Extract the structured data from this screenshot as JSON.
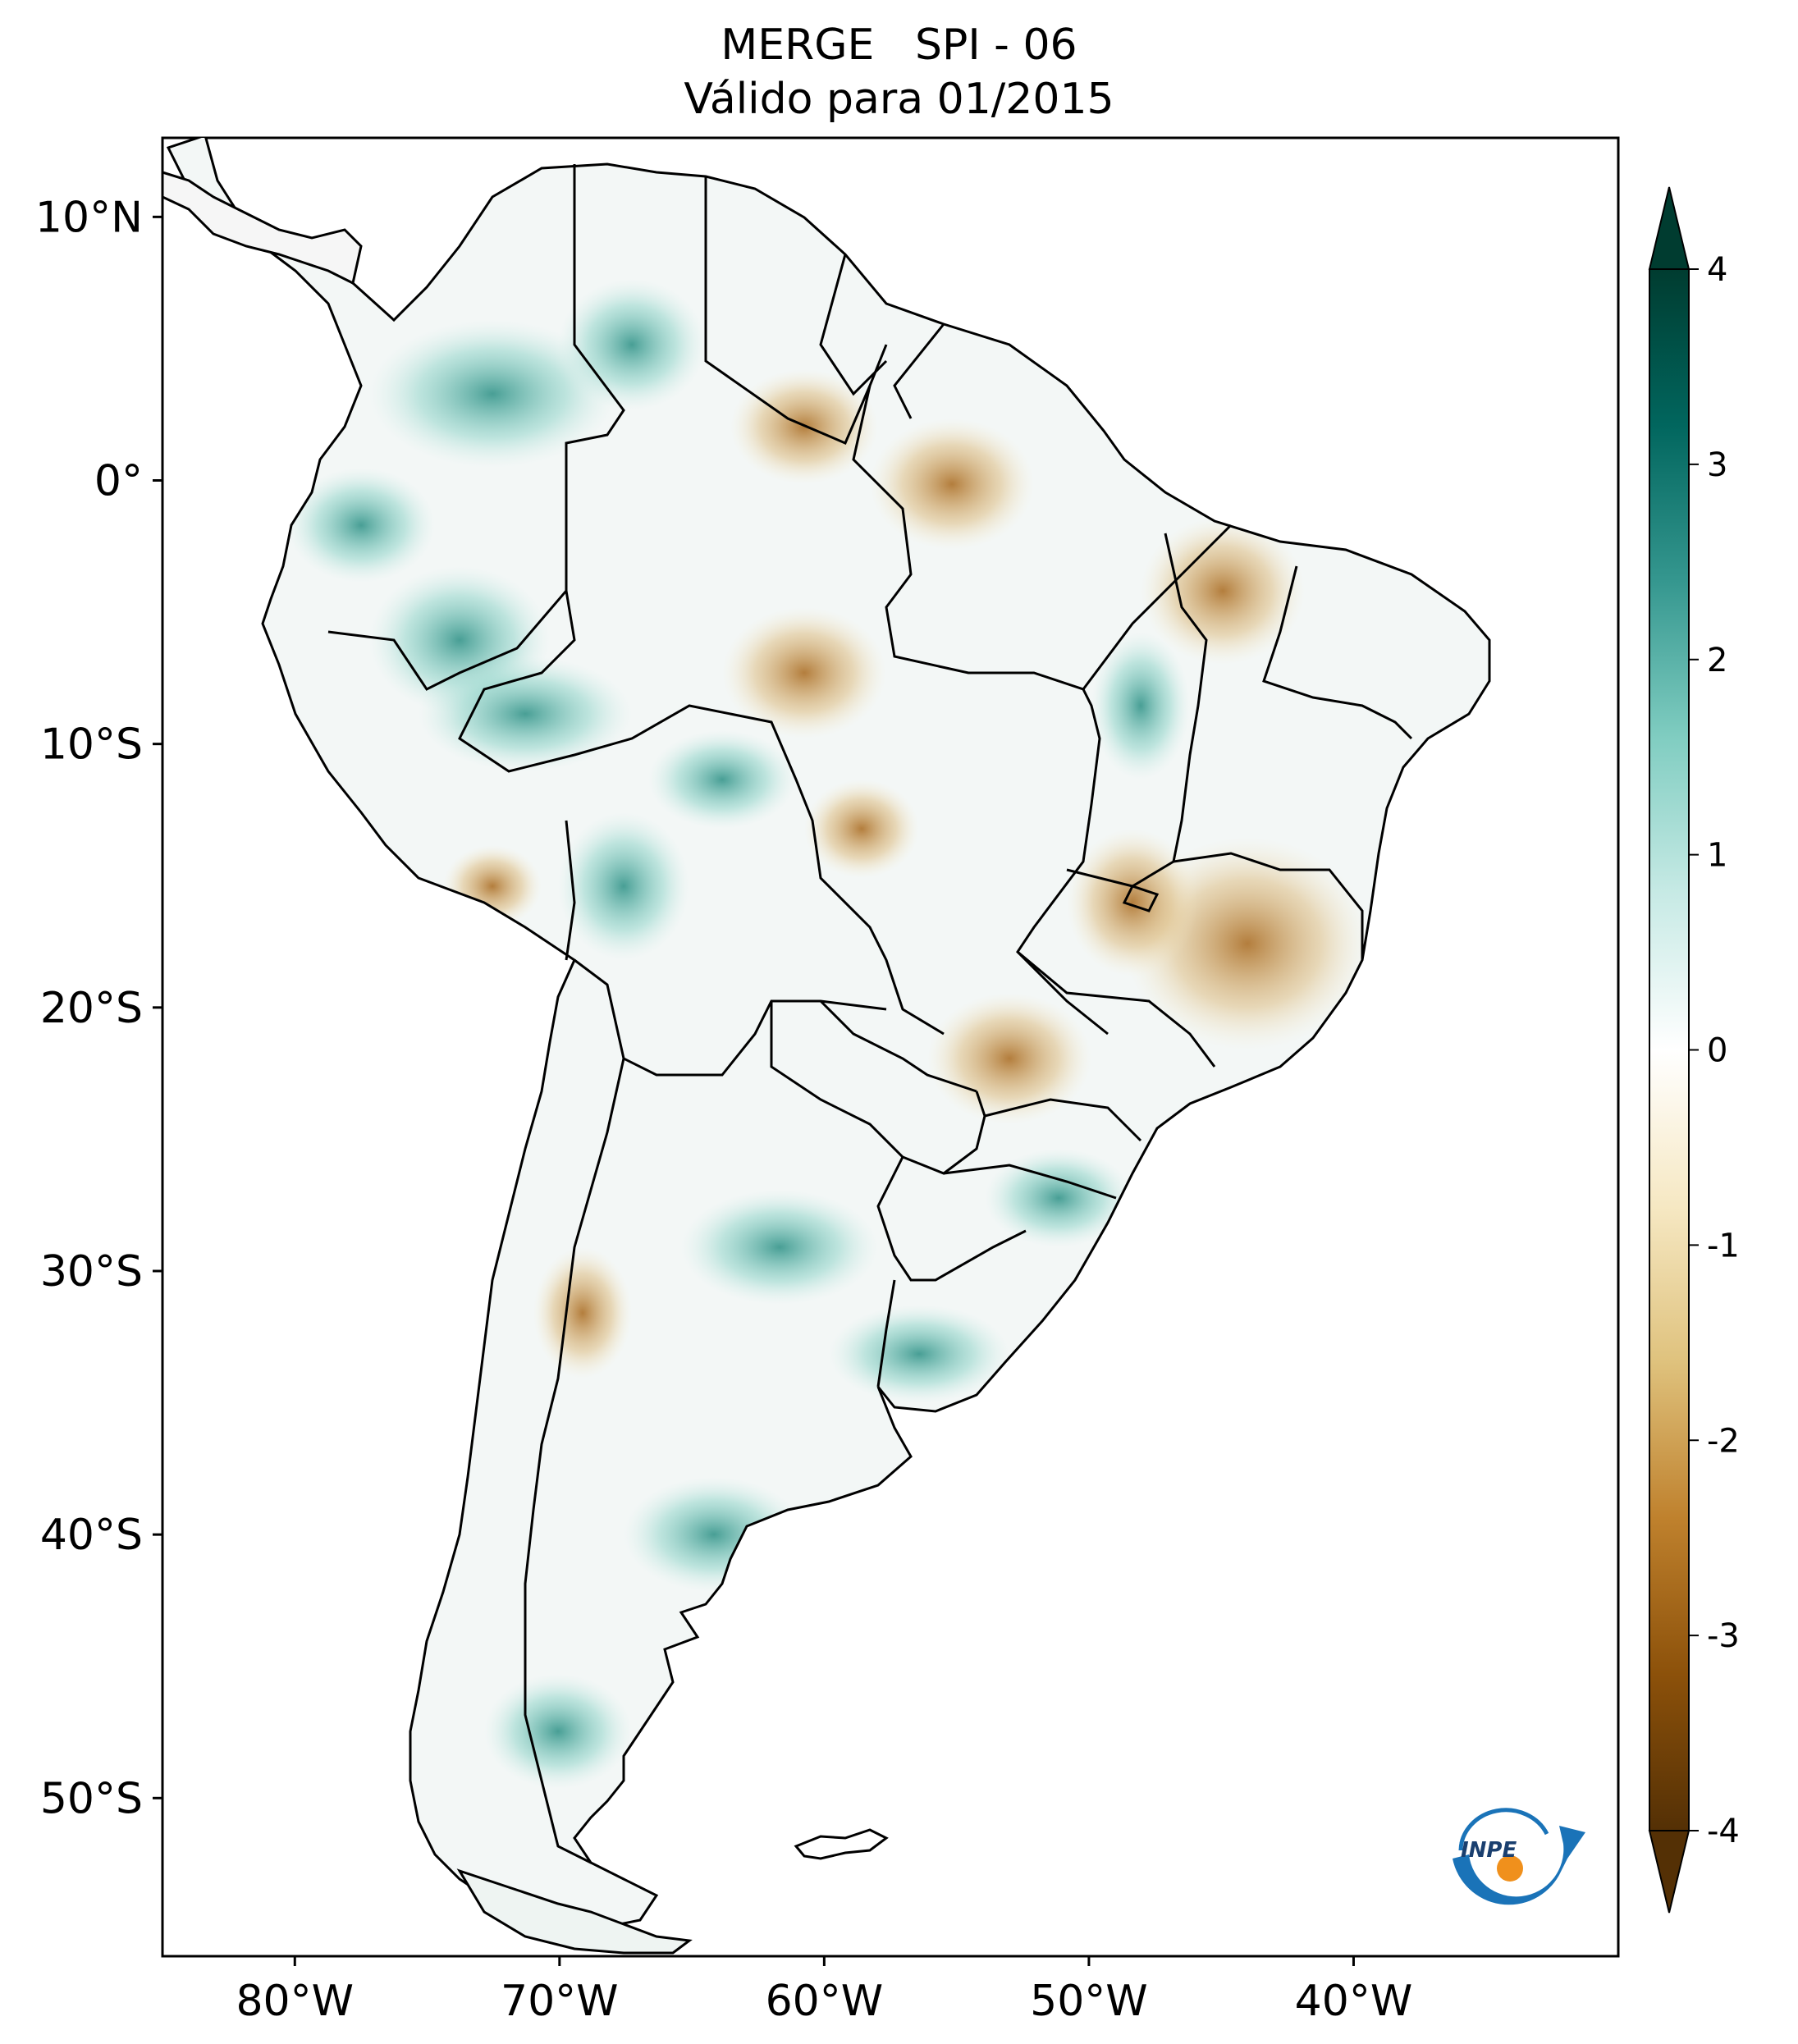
{
  "title": {
    "line1": "MERGE   SPI - 06",
    "line2": "Válido para 01/2015"
  },
  "map": {
    "lon_range": [
      -85,
      -30
    ],
    "lat_range": [
      -56,
      13
    ],
    "lon_ticks": [
      {
        "label": "80°W",
        "lon": -80
      },
      {
        "label": "70°W",
        "lon": -70
      },
      {
        "label": "60°W",
        "lon": -60
      },
      {
        "label": "50°W",
        "lon": -50
      },
      {
        "label": "40°W",
        "lon": -40
      }
    ],
    "lat_ticks": [
      {
        "label": "10°N",
        "lat": 10
      },
      {
        "label": "0°",
        "lat": 0
      },
      {
        "label": "10°S",
        "lat": -10
      },
      {
        "label": "20°S",
        "lat": -20
      },
      {
        "label": "30°S",
        "lat": -30
      },
      {
        "label": "40°S",
        "lat": -40
      },
      {
        "label": "50°S",
        "lat": -50
      }
    ]
  },
  "colorbar": {
    "min": -4,
    "max": 4,
    "ticks": [
      "4",
      "3",
      "2",
      "1",
      "0",
      "-1",
      "-2",
      "-3",
      "-4"
    ],
    "colors": [
      "#543005",
      "#8c510a",
      "#bf812d",
      "#dfc27d",
      "#f6e8c3",
      "#ffffff",
      "#c7eae5",
      "#80cdc1",
      "#35978f",
      "#01665e",
      "#003c30"
    ]
  },
  "logo": {
    "text": "INPE",
    "colors": {
      "arc": "#1a73b8",
      "dot": "#f0901c"
    }
  }
}
